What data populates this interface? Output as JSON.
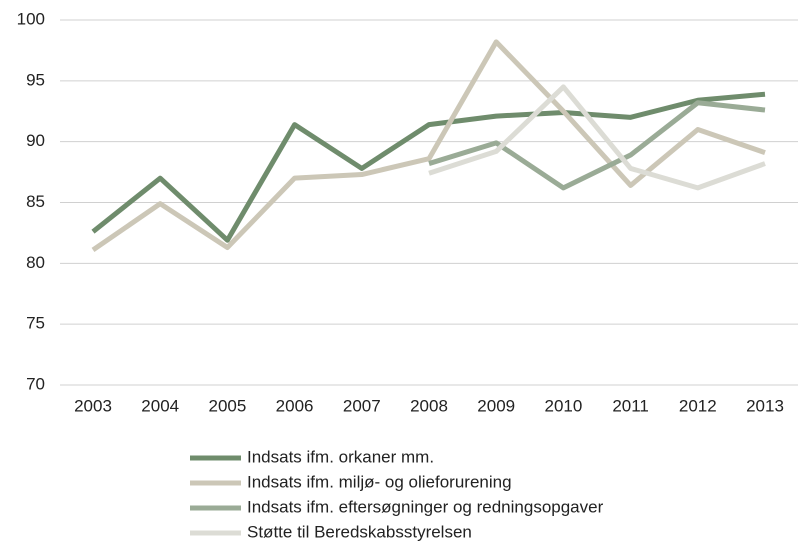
{
  "chart_data": {
    "type": "line",
    "categories": [
      "2003",
      "2004",
      "2005",
      "2006",
      "2007",
      "2008",
      "2009",
      "2010",
      "2011",
      "2012",
      "2013"
    ],
    "series": [
      {
        "name": "Indsats ifm. orkaner mm.",
        "color": "#6f8c6c",
        "values": [
          82.6,
          87.0,
          81.9,
          91.4,
          87.8,
          91.4,
          92.1,
          92.4,
          92.0,
          93.4,
          93.9
        ]
      },
      {
        "name": "Indsats ifm. miljø- og olieforurening",
        "color": "#ccc7b7",
        "values": [
          81.1,
          84.9,
          81.3,
          87.0,
          87.3,
          88.6,
          98.2,
          92.5,
          86.4,
          91.0,
          89.1
        ]
      },
      {
        "name": "Indsats ifm. eftersøgninger og redningsopgaver",
        "color": "#9aab96",
        "values": [
          null,
          null,
          null,
          null,
          null,
          88.2,
          89.9,
          86.2,
          88.9,
          93.2,
          92.6
        ]
      },
      {
        "name": "Støtte til Beredskabsstyrelsen",
        "color": "#dcdcd5",
        "values": [
          null,
          null,
          null,
          null,
          null,
          87.4,
          89.2,
          94.5,
          87.8,
          86.2,
          88.2
        ]
      }
    ],
    "ylim": [
      70,
      100
    ],
    "yticks": [
      70,
      75,
      80,
      85,
      90,
      95,
      100
    ],
    "grid": true
  }
}
